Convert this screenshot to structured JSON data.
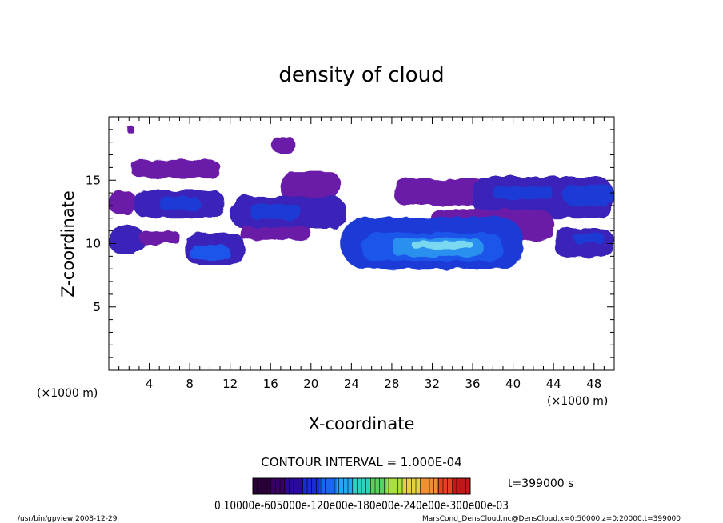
{
  "chart_data": {
    "type": "heatmap",
    "title": "density of cloud",
    "xlabel": "X-coordinate",
    "ylabel": "Z-coordinate",
    "x_unit_label_left": "(×1000 m)",
    "x_unit_label_right": "(×1000 m)",
    "xlim": [
      0,
      50
    ],
    "ylim": [
      0,
      20
    ],
    "x_ticks": [
      4,
      8,
      12,
      16,
      20,
      24,
      28,
      32,
      36,
      40,
      44,
      48
    ],
    "y_ticks": [
      5,
      10,
      15
    ],
    "contour_interval_text": "CONTOUR INTERVAL = 1.000E-04",
    "time_text": "t=399000 s",
    "colorbar_labels_text": "0.10000e-605000e-120e00e-180e00e-240e00e-300e00e-03",
    "colorbar_colors": [
      "#2a0038",
      "#3a0060",
      "#2a0a9a",
      "#1a2ad8",
      "#1a66f0",
      "#22a8f0",
      "#30d0c0",
      "#5ad060",
      "#a8e040",
      "#e8d040",
      "#f09030",
      "#e84020",
      "#c01818"
    ],
    "footer_left": "/usr/bin/gpview  2008-12-29",
    "footer_right": "MarsCond_DensCloud.nc@DensCloud,x=0:50000,z=0:20000,t=399000",
    "regions": [
      {
        "x": [
          2.2,
          11
        ],
        "z": [
          15.2,
          16.6
        ],
        "level": 0
      },
      {
        "x": [
          16.2,
          18.5
        ],
        "z": [
          17.1,
          18.4
        ],
        "level": 0
      },
      {
        "x": [
          1.8,
          2.6
        ],
        "z": [
          18.7,
          19.2
        ],
        "level": 0
      },
      {
        "x": [
          17,
          23
        ],
        "z": [
          13.3,
          15.7
        ],
        "level": 0
      },
      {
        "x": [
          0,
          2.8
        ],
        "z": [
          12.3,
          14.1
        ],
        "level": 0
      },
      {
        "x": [
          2.5,
          11.5
        ],
        "z": [
          12.0,
          14.2
        ],
        "level": 1
      },
      {
        "x": [
          5,
          9
        ],
        "z": [
          12.6,
          13.7
        ],
        "level": 2
      },
      {
        "x": [
          12,
          23.5
        ],
        "z": [
          11.2,
          13.7
        ],
        "level": 1
      },
      {
        "x": [
          14,
          19
        ],
        "z": [
          11.9,
          13.1
        ],
        "level": 2
      },
      {
        "x": [
          0,
          3.5
        ],
        "z": [
          9.2,
          11.4
        ],
        "level": 1
      },
      {
        "x": [
          3,
          7
        ],
        "z": [
          10.0,
          11.0
        ],
        "level": 0
      },
      {
        "x": [
          7.5,
          13.5
        ],
        "z": [
          8.3,
          10.9
        ],
        "level": 1
      },
      {
        "x": [
          8,
          12
        ],
        "z": [
          8.7,
          9.8
        ],
        "level": 3
      },
      {
        "x": [
          13,
          20
        ],
        "z": [
          10.3,
          11.3
        ],
        "level": 0
      },
      {
        "x": [
          28.2,
          41
        ],
        "z": [
          13.0,
          15.1
        ],
        "level": 0
      },
      {
        "x": [
          36,
          50
        ],
        "z": [
          12.0,
          15.3
        ],
        "level": 1
      },
      {
        "x": [
          38,
          44
        ],
        "z": [
          13.5,
          14.5
        ],
        "level": 2
      },
      {
        "x": [
          45,
          50
        ],
        "z": [
          13.0,
          14.6
        ],
        "level": 2
      },
      {
        "x": [
          44,
          50
        ],
        "z": [
          8.9,
          11.2
        ],
        "level": 1
      },
      {
        "x": [
          46,
          49
        ],
        "z": [
          10.0,
          10.8
        ],
        "level": 2
      },
      {
        "x": [
          31.5,
          44
        ],
        "z": [
          10.2,
          12.7
        ],
        "level": 0
      },
      {
        "x": [
          23,
          41
        ],
        "z": [
          8.0,
          12.1
        ],
        "level": 2
      },
      {
        "x": [
          25,
          39
        ],
        "z": [
          8.6,
          10.8
        ],
        "level": 3
      },
      {
        "x": [
          28,
          37
        ],
        "z": [
          9.0,
          10.4
        ],
        "level": 4
      },
      {
        "x": [
          30,
          36
        ],
        "z": [
          9.6,
          10.2
        ],
        "level": 5
      }
    ]
  }
}
